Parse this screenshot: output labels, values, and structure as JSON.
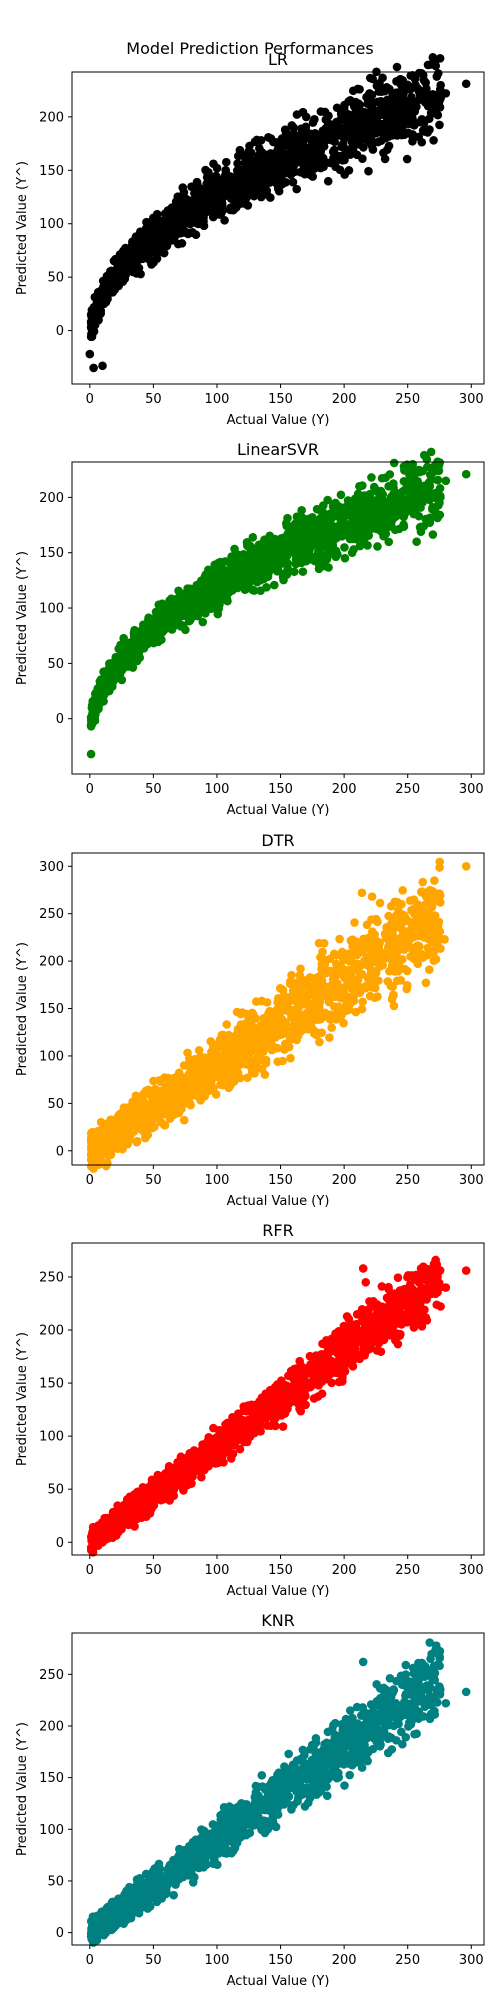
{
  "chart_data": {
    "suptitle": "Model Prediction Performances",
    "type": "scatter",
    "panels": [
      {
        "title": "LR",
        "xlabel": "Actual Value (Y)",
        "ylabel": "Predicted Value (Y^)",
        "color": "#000000",
        "xlim": [
          -14,
          310
        ],
        "ylim": [
          -50,
          242
        ],
        "xticks": [
          0,
          50,
          100,
          150,
          200,
          250,
          300
        ],
        "yticks": [
          0,
          50,
          100,
          150,
          200
        ],
        "trend": {
          "type": "sqrt",
          "a": -12,
          "b": 14.0
        },
        "spread": 14,
        "points": [
          [
            0,
            -22
          ],
          [
            3,
            -35
          ],
          [
            10,
            -33
          ],
          [
            80,
            118
          ],
          [
            92,
            124
          ],
          [
            220,
            222
          ],
          [
            232,
            224
          ],
          [
            268,
            219
          ],
          [
            280,
            222
          ],
          [
            296,
            231
          ]
        ]
      },
      {
        "title": "LinearSVR",
        "xlabel": "Actual Value (Y)",
        "ylabel": "Predicted Value (Y^)",
        "color": "#008000",
        "xlim": [
          -14,
          310
        ],
        "ylim": [
          -50,
          232
        ],
        "xticks": [
          0,
          50,
          100,
          150,
          200,
          250,
          300
        ],
        "yticks": [
          0,
          50,
          100,
          150,
          200
        ],
        "trend": {
          "type": "sqrt",
          "a": -15,
          "b": 13.5
        },
        "spread": 11,
        "points": [
          [
            1,
            -32
          ],
          [
            78,
            117
          ],
          [
            86,
            120
          ],
          [
            212,
            210
          ],
          [
            235,
            210
          ],
          [
            262,
            206
          ],
          [
            280,
            215
          ],
          [
            296,
            221
          ]
        ]
      },
      {
        "title": "DTR",
        "xlabel": "Actual Value (Y)",
        "ylabel": "Predicted Value (Y^)",
        "color": "#FFA500",
        "xlim": [
          -14,
          310
        ],
        "ylim": [
          -15,
          314
        ],
        "xticks": [
          0,
          50,
          100,
          150,
          200,
          250,
          300
        ],
        "yticks": [
          0,
          50,
          100,
          150,
          200,
          250,
          300
        ],
        "trend": {
          "type": "linear",
          "m": 0.9,
          "c": 0
        },
        "spread": 18,
        "points": [
          [
            214,
            272
          ],
          [
            222,
            268
          ],
          [
            242,
            262
          ],
          [
            268,
            268
          ],
          [
            279,
            223
          ],
          [
            296,
            300
          ],
          [
            160,
            140
          ],
          [
            180,
            160
          ]
        ]
      },
      {
        "title": "RFR",
        "xlabel": "Actual Value (Y)",
        "ylabel": "Predicted Value (Y^)",
        "color": "#FF0000",
        "xlim": [
          -14,
          310
        ],
        "ylim": [
          -12,
          282
        ],
        "xticks": [
          0,
          50,
          100,
          150,
          200,
          250,
          300
        ],
        "yticks": [
          0,
          50,
          100,
          150,
          200,
          250
        ],
        "trend": {
          "type": "linear",
          "m": 0.9,
          "c": 0
        },
        "spread": 10,
        "points": [
          [
            215,
            258
          ],
          [
            217,
            245
          ],
          [
            272,
            266
          ],
          [
            280,
            240
          ],
          [
            296,
            256
          ],
          [
            270,
            258
          ]
        ]
      },
      {
        "title": "KNR",
        "xlabel": "Actual Value (Y)",
        "ylabel": "Predicted Value (Y^)",
        "color": "#008080",
        "xlim": [
          -14,
          310
        ],
        "ylim": [
          -12,
          290
        ],
        "xticks": [
          0,
          50,
          100,
          150,
          200,
          250,
          300
        ],
        "yticks": [
          0,
          50,
          100,
          150,
          200,
          250
        ],
        "trend": {
          "type": "linear",
          "m": 0.9,
          "c": 0
        },
        "spread": 12,
        "points": [
          [
            215,
            262
          ],
          [
            268,
            265
          ],
          [
            272,
            274
          ],
          [
            280,
            222
          ],
          [
            296,
            233
          ],
          [
            140,
            100
          ]
        ]
      }
    ]
  }
}
